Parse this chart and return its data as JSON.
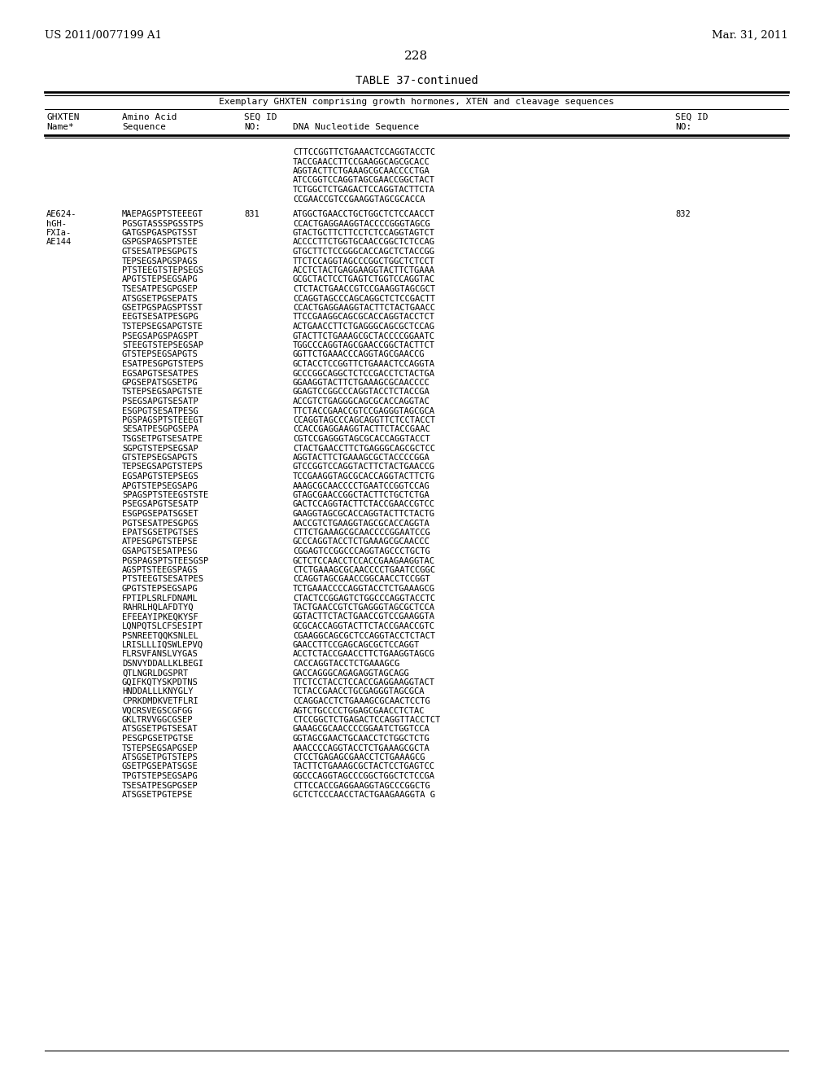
{
  "header_left": "US 2011/0077199 A1",
  "header_right": "Mar. 31, 2011",
  "page_number": "228",
  "table_title": "TABLE 37-continued",
  "table_subtitle": "Exemplary GHXTEN comprising growth hormones, XTEN and cleavage sequences",
  "col1_header": [
    "GHXTEN",
    "Name*"
  ],
  "col2_header": [
    "Amino Acid",
    "Sequence"
  ],
  "col3_header": [
    "SEQ ID",
    "NO:"
  ],
  "col4_header": "DNA Nucleotide Sequence",
  "col5_header": [
    "SEQ ID",
    "NO:"
  ],
  "continuation_dna": [
    "CTTCCGGTTCTGAAACTCCAGGTACCTC",
    "TACCGAACCTTCCGAAGGCAGCGCACC",
    "AGGTACTTCTGAAAGCGCAACCCCTGA",
    "ATCCGGTCCAGGTAGCGAACCGGCTACT",
    "TCTGGCTCTGAGACTCCAGGTACTTCTA",
    "CCGAACCGTCCGAAGGTAGCGCACCA"
  ],
  "rows": [
    [
      "AE624-",
      "MAEPAGSPTSTEEEGT",
      "831",
      "ATGGCTGAACCTGCTGGCTCTCCAACCT",
      "832"
    ],
    [
      "hGH-",
      "PGSGTASSSPGSSTPS",
      "",
      "CCACTGAGGAAGGTACCCCGGGTAGCG",
      ""
    ],
    [
      "FXIa-",
      "GATGSPGASPGTSST",
      "",
      "GTACTGCTTCTTCCTCTCCAGGTAGTCT",
      ""
    ],
    [
      "AE144",
      "GSPGSPAGSPTSTEE",
      "",
      "ACCCCTTCTGGTGCAACCGGCTCTCCAG",
      ""
    ],
    [
      "",
      "GTSESATPESGPGTS",
      "",
      "GTGCTTCTCCGGGCACCAGCTCTACCGG",
      ""
    ],
    [
      "",
      "TEPSEGSAPGSPAGS",
      "",
      "TTCTCCAGGTAGCCCGGCTGGCTCTCCT",
      ""
    ],
    [
      "",
      "PTSTEEGTSTEPSEGS",
      "",
      "ACCTCTACTGAGGAAGGTACTTCTGAAA",
      ""
    ],
    [
      "",
      "APGTSTEPSEGSAPG",
      "",
      "GCGCTACTCCTGAGTCTGGTCCAGGTAC",
      ""
    ],
    [
      "",
      "TSESATPESGPGSEP",
      "",
      "CTCTACTGAACCGTCCGAAGGTAGCGCT",
      ""
    ],
    [
      "",
      "ATSGSETPGSEPATS",
      "",
      "CCAGGTAGCCCAGCAGGCTCTCCGACTT",
      ""
    ],
    [
      "",
      "GSETPGSPAGSPTSST",
      "",
      "CCACTGAGGAAGGTACTTCTACTGAACC",
      ""
    ],
    [
      "",
      "EEGTSESATPESGPG",
      "",
      "TTCCGAAGGCAGCGCACCAGGTACCTCT",
      ""
    ],
    [
      "",
      "TSTEPSEGSAPGTSTE",
      "",
      "ACTGAACCTTCTGAGGGCAGCGCTCCAG",
      ""
    ],
    [
      "",
      "PSEGSAPGSPAGSPT",
      "",
      "GTACTTCTGAAAGCGCTACCCCGGAATC",
      ""
    ],
    [
      "",
      "STEEGTSTEPSEGSAP",
      "",
      "TGGCCCAGGTAGCGAACCGGCTACTTCT",
      ""
    ],
    [
      "",
      "GTSTEPSEGSAPGTS",
      "",
      "GGTTCTGAAACCCAGGTAGCGAACCG",
      ""
    ],
    [
      "",
      "ESATPESGPGTSTEPS",
      "",
      "GCTACCTCCGGTTCTGAAACTCCAGGTA",
      ""
    ],
    [
      "",
      "EGSAPGTSESATPES",
      "",
      "GCCCGGCAGGCTCTCCGACCTCTACTGA",
      ""
    ],
    [
      "",
      "GPGSEPATSGSETPG",
      "",
      "GGAAGGTACTTCTGAAAGCGCAACCCC",
      ""
    ],
    [
      "",
      "TSTEPSEGSAPGTSTE",
      "",
      "GGAGTCCGGCCCAGGTACCTCTACCGA",
      ""
    ],
    [
      "",
      "PSEGSAPGTSESATP",
      "",
      "ACCGTCTGAGGGCAGCGCACCAGGTAC",
      ""
    ],
    [
      "",
      "ESGPGTSESATPESG",
      "",
      "TTCTACCGAACCGTCCGAGGGTAGCGCA",
      ""
    ],
    [
      "",
      "PGSPAGSPTSTEEEGT",
      "",
      "CCAGGTAGCCCAGCAGGTTCTCCTACCT",
      ""
    ],
    [
      "",
      "SESATPESGPGSEPA",
      "",
      "CCACCGAGGAAGGTACTTCTACCGAAC",
      ""
    ],
    [
      "",
      "TSGSETPGTSESATPE",
      "",
      "CGTCCGAGGGTAGCGCACCAGGTACCT",
      ""
    ],
    [
      "",
      "SGPGTSTEPSEGSAP",
      "",
      "CTACTGAACCTTCTGAGGGCAGCGCTCC",
      ""
    ],
    [
      "",
      "GTSTEPSEGSAPGTS",
      "",
      "AGGTACTTCTGAAAGCGCTACCCCGGA",
      ""
    ],
    [
      "",
      "TEPSEGSAPGTSTEPS",
      "",
      "GTCCGGTCCAGGTACTTCTACTGAACCG",
      ""
    ],
    [
      "",
      "EGSAPGTSTEPSEGS",
      "",
      "TCCGAAGGTAGCGCACCAGGTACTTCTG",
      ""
    ],
    [
      "",
      "APGTSTEPSEGSAPG",
      "",
      "AAAGCGCAACCCCTGAATCCGGTCCAG",
      ""
    ],
    [
      "",
      "SPAGSPTSTEEGSTSTE",
      "",
      "GTAGCGAACCGGCTACTTCTGCTCTGA",
      ""
    ],
    [
      "",
      "PSEGSAPGTSESATP",
      "",
      "GACTCCAGGTACTTCTACCGAACCGTCC",
      ""
    ],
    [
      "",
      "ESGPGSEPATSGSET",
      "",
      "GAAGGTAGCGCACCAGGTACTTCTACTG",
      ""
    ],
    [
      "",
      "PGTSESATPESGPGS",
      "",
      "AACCGTCTGAAGGTAGCGCACCAGGTA",
      ""
    ],
    [
      "",
      "EPATSGSETPGTSES",
      "",
      "CTTCTGAAAGCGCAACCCCGGAATCCG",
      ""
    ],
    [
      "",
      "ATPESGPGTSTEPSE",
      "",
      "GCCCAGGTACCTCTGAAAGCGCAACCC",
      ""
    ],
    [
      "",
      "GSAPGTSESATPESG",
      "",
      "CGGAGTCCGGCCCAGGTAGCCCTGCTG",
      ""
    ],
    [
      "",
      "PGSPAGSPTSTEESGSP",
      "",
      "GCTCTCCAACCTCCACCGAAGAAGGTAC",
      ""
    ],
    [
      "",
      "AGSPTSTEEGSPAGS",
      "",
      "CTCTGAAAGCGCAACCCCTGAATCCGGC",
      ""
    ],
    [
      "",
      "PTSTEEGTSESATPES",
      "",
      "CCAGGTAGCGAACCGGCAACCTCCGGT",
      ""
    ],
    [
      "",
      "GPGTSTEPSEGSAPG",
      "",
      "TCTGAAACCCCAGGTACCTCTGAAAGCG",
      ""
    ],
    [
      "",
      "FPTIPLSRLFDNAML",
      "",
      "CTACTCCGGAGTCTGGCCCAGGTACCTC",
      ""
    ],
    [
      "",
      "RAHRLHQLAFDTYQ",
      "",
      "TACTGAACCGTCTGAGGGTAGCGCTCCA",
      ""
    ],
    [
      "",
      "EFEEAYIPKEQKYSF",
      "",
      "GGTACTTCTACTGAACCGTCCGAAGGTA",
      ""
    ],
    [
      "",
      "LQNPQTSLCFSESIPT",
      "",
      "GCGCACCAGGTACTTCTACCGAACCGTC",
      ""
    ],
    [
      "",
      "PSNREETQQKSNLEL",
      "",
      "CGAAGGCAGCGCTCCAGGTACCTCTACT",
      ""
    ],
    [
      "",
      "LRISLLLIQSWLEPVQ",
      "",
      "GAACCTTCCGAGCAGCGCTCCAGGT",
      ""
    ],
    [
      "",
      "FLRSVFANSLVYGAS",
      "",
      "ACCTCTACCGAACCTTCTGAAGGTAGCG",
      ""
    ],
    [
      "",
      "DSNVYDDALLKLBEGI",
      "",
      "CACCAGGTACCTCTGAAAGCG",
      ""
    ],
    [
      "",
      "QTLNGRLDGSPRT",
      "",
      "GACCAGGGCAGAGAGGTAGCAGG",
      ""
    ],
    [
      "",
      "GQIFKQTYSKPDTNS",
      "",
      "TTCTCCTACCTCCACCGAGGAAGGTACT",
      ""
    ],
    [
      "",
      "HNDDALLLKNYGLY",
      "",
      "TCTACCGAACCTGCGAGGGTAGCGCA",
      ""
    ],
    [
      "",
      "CPRKDMDKVETFLRI",
      "",
      "CCAGGACCTCTGAAAGCGCAACTCCTG",
      ""
    ],
    [
      "",
      "VQCRSVEGSCGFGG",
      "",
      "AGTCTGCCCCTGGAGCGAACCTCTAC",
      ""
    ],
    [
      "",
      "GKLTRVVGGCGSEP",
      "",
      "CTCCGGCTCTGAGACTCCAGGTTACCTCT",
      ""
    ],
    [
      "",
      "ATSGSETPGTSESAT",
      "",
      "GAAAGCGCAACCCCGGAATCTGGTCCA",
      ""
    ],
    [
      "",
      "PESGPGSETPGTSE",
      "",
      "GGTAGCGAACTGCAACCTCTGGCTCTG",
      ""
    ],
    [
      "",
      "TSTEPSEGSAPGSEP",
      "",
      "AAACCCCAGGTACCTCTGAAAGCGCTA",
      ""
    ],
    [
      "",
      "ATSGSETPGTSTEPS",
      "",
      "CTCCTGAGAGCGAACCTCTGAAAGCG",
      ""
    ],
    [
      "",
      "GSETPGSEPATSGSE",
      "",
      "TACTTCTGAAAGCGCTACTCCTGAGTCC",
      ""
    ],
    [
      "",
      "TPGTSTEPSEGSAPG",
      "",
      "GGCCCAGGTAGCCCGGCTGGCTCTCCGA",
      ""
    ],
    [
      "",
      "TSESATPESGPGSEP",
      "",
      "CTTCCACCGAGGAAGGTAGCCCGGCTG",
      ""
    ],
    [
      "",
      "ATSGSETPGTEPSE",
      "",
      "GCTCTCCCAACCTACTGAAGAAGGTA G",
      ""
    ]
  ],
  "background_color": "#ffffff",
  "text_color": "#000000"
}
